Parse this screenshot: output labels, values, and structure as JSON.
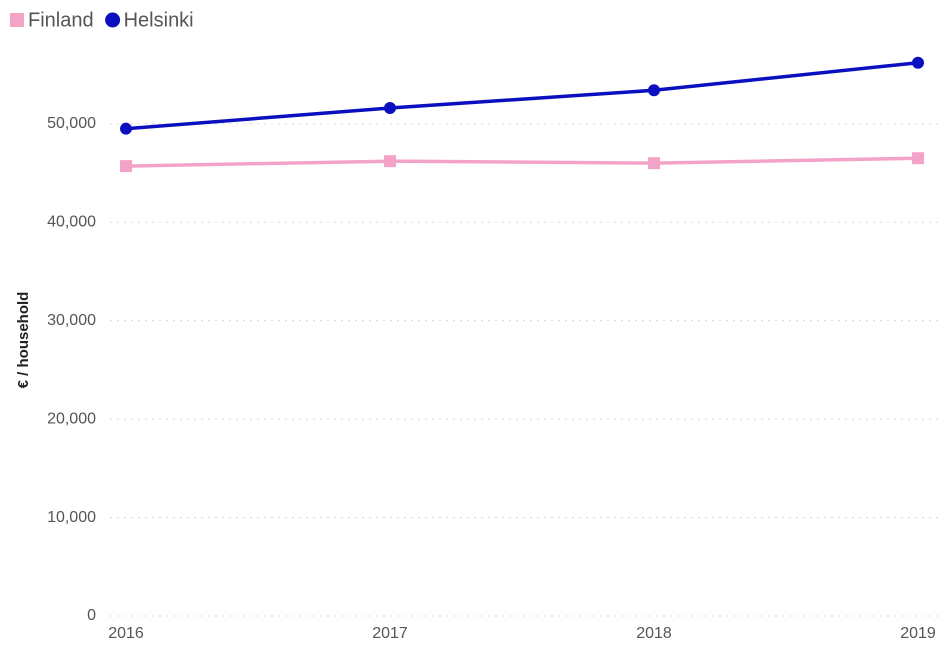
{
  "chart_data": {
    "type": "line",
    "y_label": "€ / household",
    "x": [
      2016,
      2017,
      2018,
      2019
    ],
    "xlim": [
      2016,
      2019
    ],
    "xticks": [
      2016,
      2017,
      2018,
      2019
    ],
    "ylim": [
      0,
      58000
    ],
    "yticks": [
      0,
      {
        "value": 10000,
        "label": "10,000"
      },
      {
        "value": 20000,
        "label": "20,000"
      },
      {
        "value": 30000,
        "label": "30,000"
      },
      {
        "value": 40000,
        "label": "40,000"
      },
      {
        "value": 50000,
        "label": "50,000"
      }
    ],
    "grid": true,
    "legend": "top-left",
    "series": [
      {
        "name": "Finland",
        "color": "#f4a3c8",
        "marker": "square",
        "values": [
          45700,
          46200,
          46000,
          46500
        ]
      },
      {
        "name": "Helsinki",
        "color": "#0a10bf",
        "marker": "circle",
        "values": [
          49500,
          51600,
          53400,
          56200
        ]
      }
    ]
  }
}
